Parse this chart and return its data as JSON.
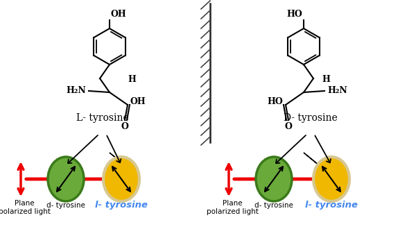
{
  "bg_color": "#ffffff",
  "green_color": "#6aaa3a",
  "green_border": "#3a7a1a",
  "yellow_color": "#f0b800",
  "yellow_border": "#d8c890",
  "red_color": "#ee0000",
  "black_color": "#000000",
  "blue_color": "#4488ee",
  "left_title": "L- tyrosine",
  "right_title": "D- tyrosine",
  "plane_label": "Plane\npolarized light",
  "d_label": "d- tyrosine",
  "l_label": "l- tyrosine"
}
